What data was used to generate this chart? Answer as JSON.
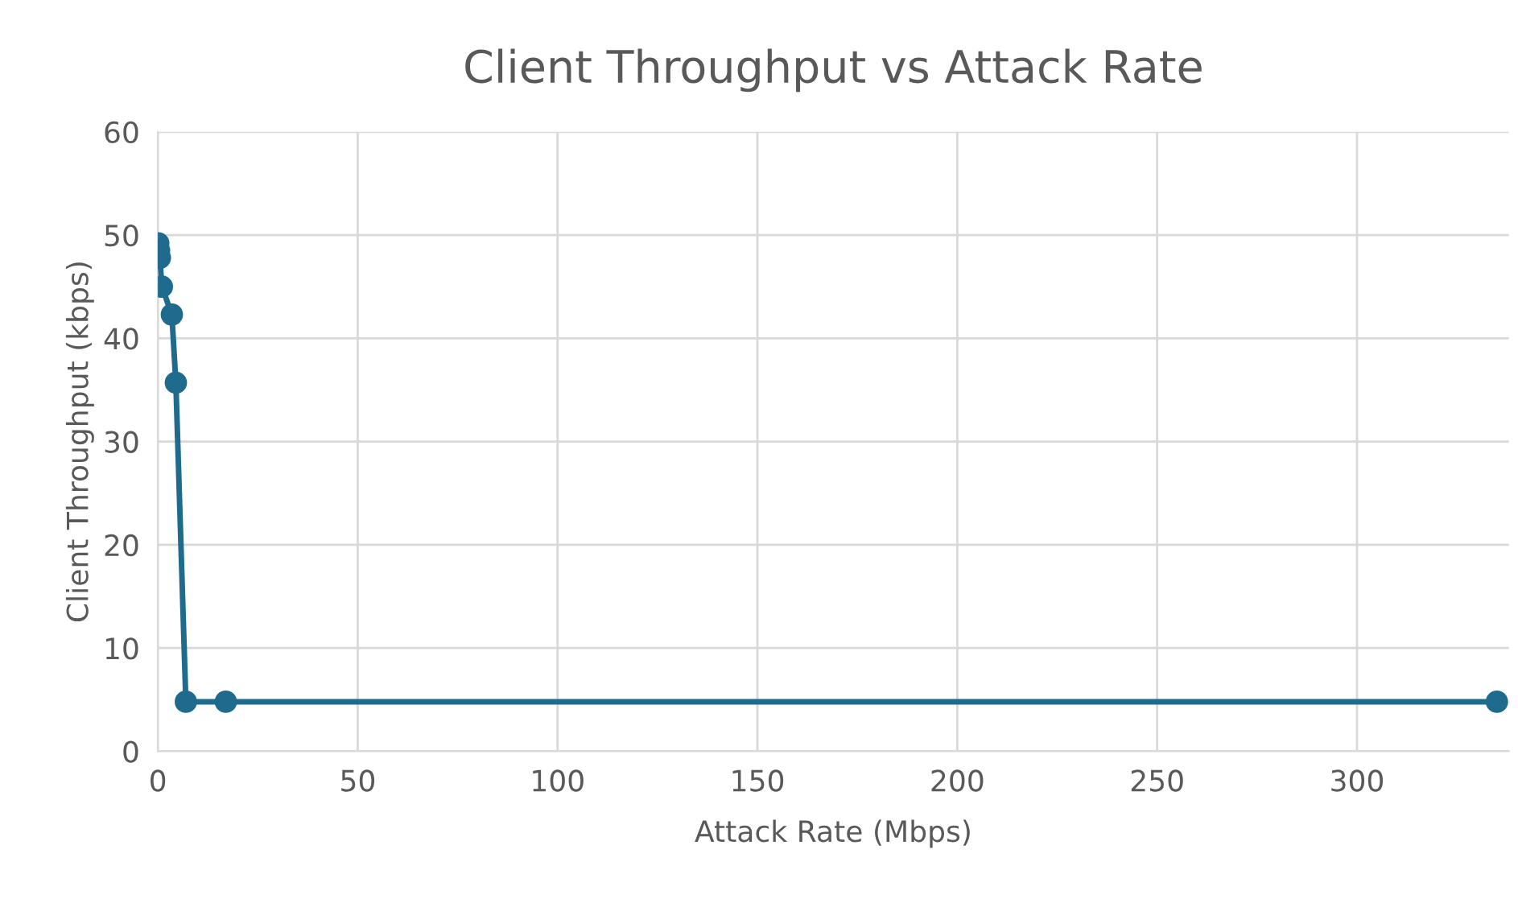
{
  "chart_data": {
    "type": "line",
    "title": "Client Throughput vs Attack Rate",
    "xlabel": "Attack Rate (Mbps)",
    "ylabel": "Client Throughput (kbps)",
    "x": [
      0.1,
      0.3,
      0.5,
      1,
      3.5,
      4.5,
      7,
      17,
      335
    ],
    "series": [
      {
        "color": "#1f6b8e",
        "values": [
          49.2,
          48.5,
          47.8,
          45,
          42.3,
          35.7,
          4.8,
          4.8,
          4.8
        ]
      }
    ],
    "xlim": [
      0,
      338
    ],
    "xticks": [
      0,
      50,
      100,
      150,
      200,
      250,
      300
    ],
    "ylim": [
      0,
      60
    ],
    "yticks": [
      0,
      10,
      20,
      30,
      40,
      50,
      60
    ],
    "grid": true,
    "marker": "circle",
    "line_style": "solid",
    "legend": false
  }
}
